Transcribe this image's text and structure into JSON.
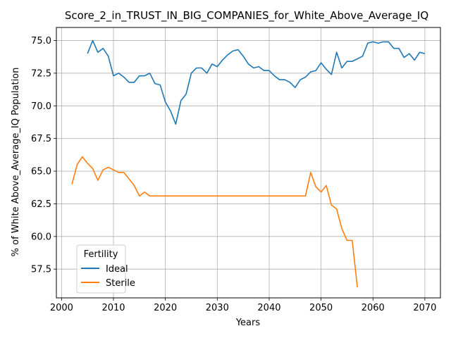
{
  "chart_data": {
    "type": "line",
    "title": "Score_2_in_TRUST_IN_BIG_COMPANIES_for_White_Above_Average_IQ",
    "xlabel": "Years",
    "ylabel": "% of White Above_Average_IQ Population",
    "xlim": [
      1999,
      2073
    ],
    "ylim": [
      55.3,
      76.0
    ],
    "xticks": [
      2000,
      2010,
      2020,
      2030,
      2040,
      2050,
      2060,
      2070
    ],
    "yticks": [
      57.5,
      60.0,
      62.5,
      65.0,
      67.5,
      70.0,
      72.5,
      75.0
    ],
    "xtick_labels": [
      "2000",
      "2010",
      "2020",
      "2030",
      "2040",
      "2050",
      "2060",
      "2070"
    ],
    "ytick_labels": [
      "57.5",
      "60.0",
      "62.5",
      "65.0",
      "67.5",
      "70.0",
      "72.5",
      "75.0"
    ],
    "grid": true,
    "legend": {
      "title": "Fertility",
      "placement": "lower-left",
      "entries": [
        "Ideal",
        "Sterile"
      ]
    },
    "series": [
      {
        "name": "Ideal",
        "color": "#1f77b4",
        "x": [
          2005,
          2006,
          2007,
          2008,
          2009,
          2010,
          2011,
          2012,
          2013,
          2014,
          2015,
          2016,
          2017,
          2018,
          2019,
          2020,
          2021,
          2022,
          2023,
          2024,
          2025,
          2026,
          2027,
          2028,
          2029,
          2030,
          2031,
          2032,
          2033,
          2034,
          2035,
          2036,
          2037,
          2038,
          2039,
          2040,
          2041,
          2042,
          2043,
          2044,
          2045,
          2046,
          2047,
          2048,
          2049,
          2050,
          2051,
          2052,
          2053,
          2054,
          2055,
          2056,
          2057,
          2058,
          2059,
          2060,
          2061,
          2062,
          2063,
          2064,
          2065,
          2066,
          2067,
          2068,
          2069,
          2070
        ],
        "y": [
          74.0,
          75.0,
          74.1,
          74.4,
          73.8,
          72.3,
          72.5,
          72.2,
          71.8,
          71.8,
          72.3,
          72.3,
          72.5,
          71.7,
          71.6,
          70.3,
          69.6,
          68.6,
          70.4,
          70.9,
          72.5,
          72.9,
          72.9,
          72.5,
          73.2,
          73.0,
          73.5,
          73.9,
          74.2,
          74.3,
          73.8,
          73.2,
          72.9,
          73.0,
          72.7,
          72.7,
          72.3,
          72.0,
          72.0,
          71.8,
          71.4,
          72.0,
          72.2,
          72.6,
          72.7,
          73.3,
          72.8,
          72.4,
          74.1,
          72.9,
          73.4,
          73.4,
          73.6,
          73.8,
          74.8,
          74.9,
          74.8,
          74.9,
          74.9,
          74.4,
          74.4,
          73.7,
          74.0,
          73.5,
          74.1,
          74.0
        ]
      },
      {
        "name": "Sterile",
        "color": "#ff7f0e",
        "x": [
          2002,
          2003,
          2004,
          2005,
          2006,
          2007,
          2008,
          2009,
          2010,
          2011,
          2012,
          2013,
          2014,
          2015,
          2016,
          2017,
          2018,
          2019,
          2020,
          2021,
          2022,
          2023,
          2024,
          2025,
          2026,
          2027,
          2028,
          2029,
          2030,
          2031,
          2032,
          2033,
          2034,
          2035,
          2036,
          2037,
          2038,
          2039,
          2040,
          2041,
          2042,
          2043,
          2044,
          2045,
          2046,
          2047,
          2048,
          2049,
          2050,
          2051,
          2052,
          2053,
          2054,
          2055,
          2056,
          2057
        ],
        "y": [
          64.0,
          65.5,
          66.1,
          65.6,
          65.2,
          64.3,
          65.1,
          65.3,
          65.1,
          64.9,
          64.9,
          64.4,
          63.9,
          63.1,
          63.4,
          63.1,
          63.1,
          63.1,
          63.1,
          63.1,
          63.1,
          63.1,
          63.1,
          63.1,
          63.1,
          63.1,
          63.1,
          63.1,
          63.1,
          63.1,
          63.1,
          63.1,
          63.1,
          63.1,
          63.1,
          63.1,
          63.1,
          63.1,
          63.1,
          63.1,
          63.1,
          63.1,
          63.1,
          63.1,
          63.1,
          63.1,
          64.9,
          63.8,
          63.4,
          63.9,
          62.4,
          62.1,
          60.6,
          59.7,
          59.7,
          56.1
        ]
      }
    ]
  }
}
